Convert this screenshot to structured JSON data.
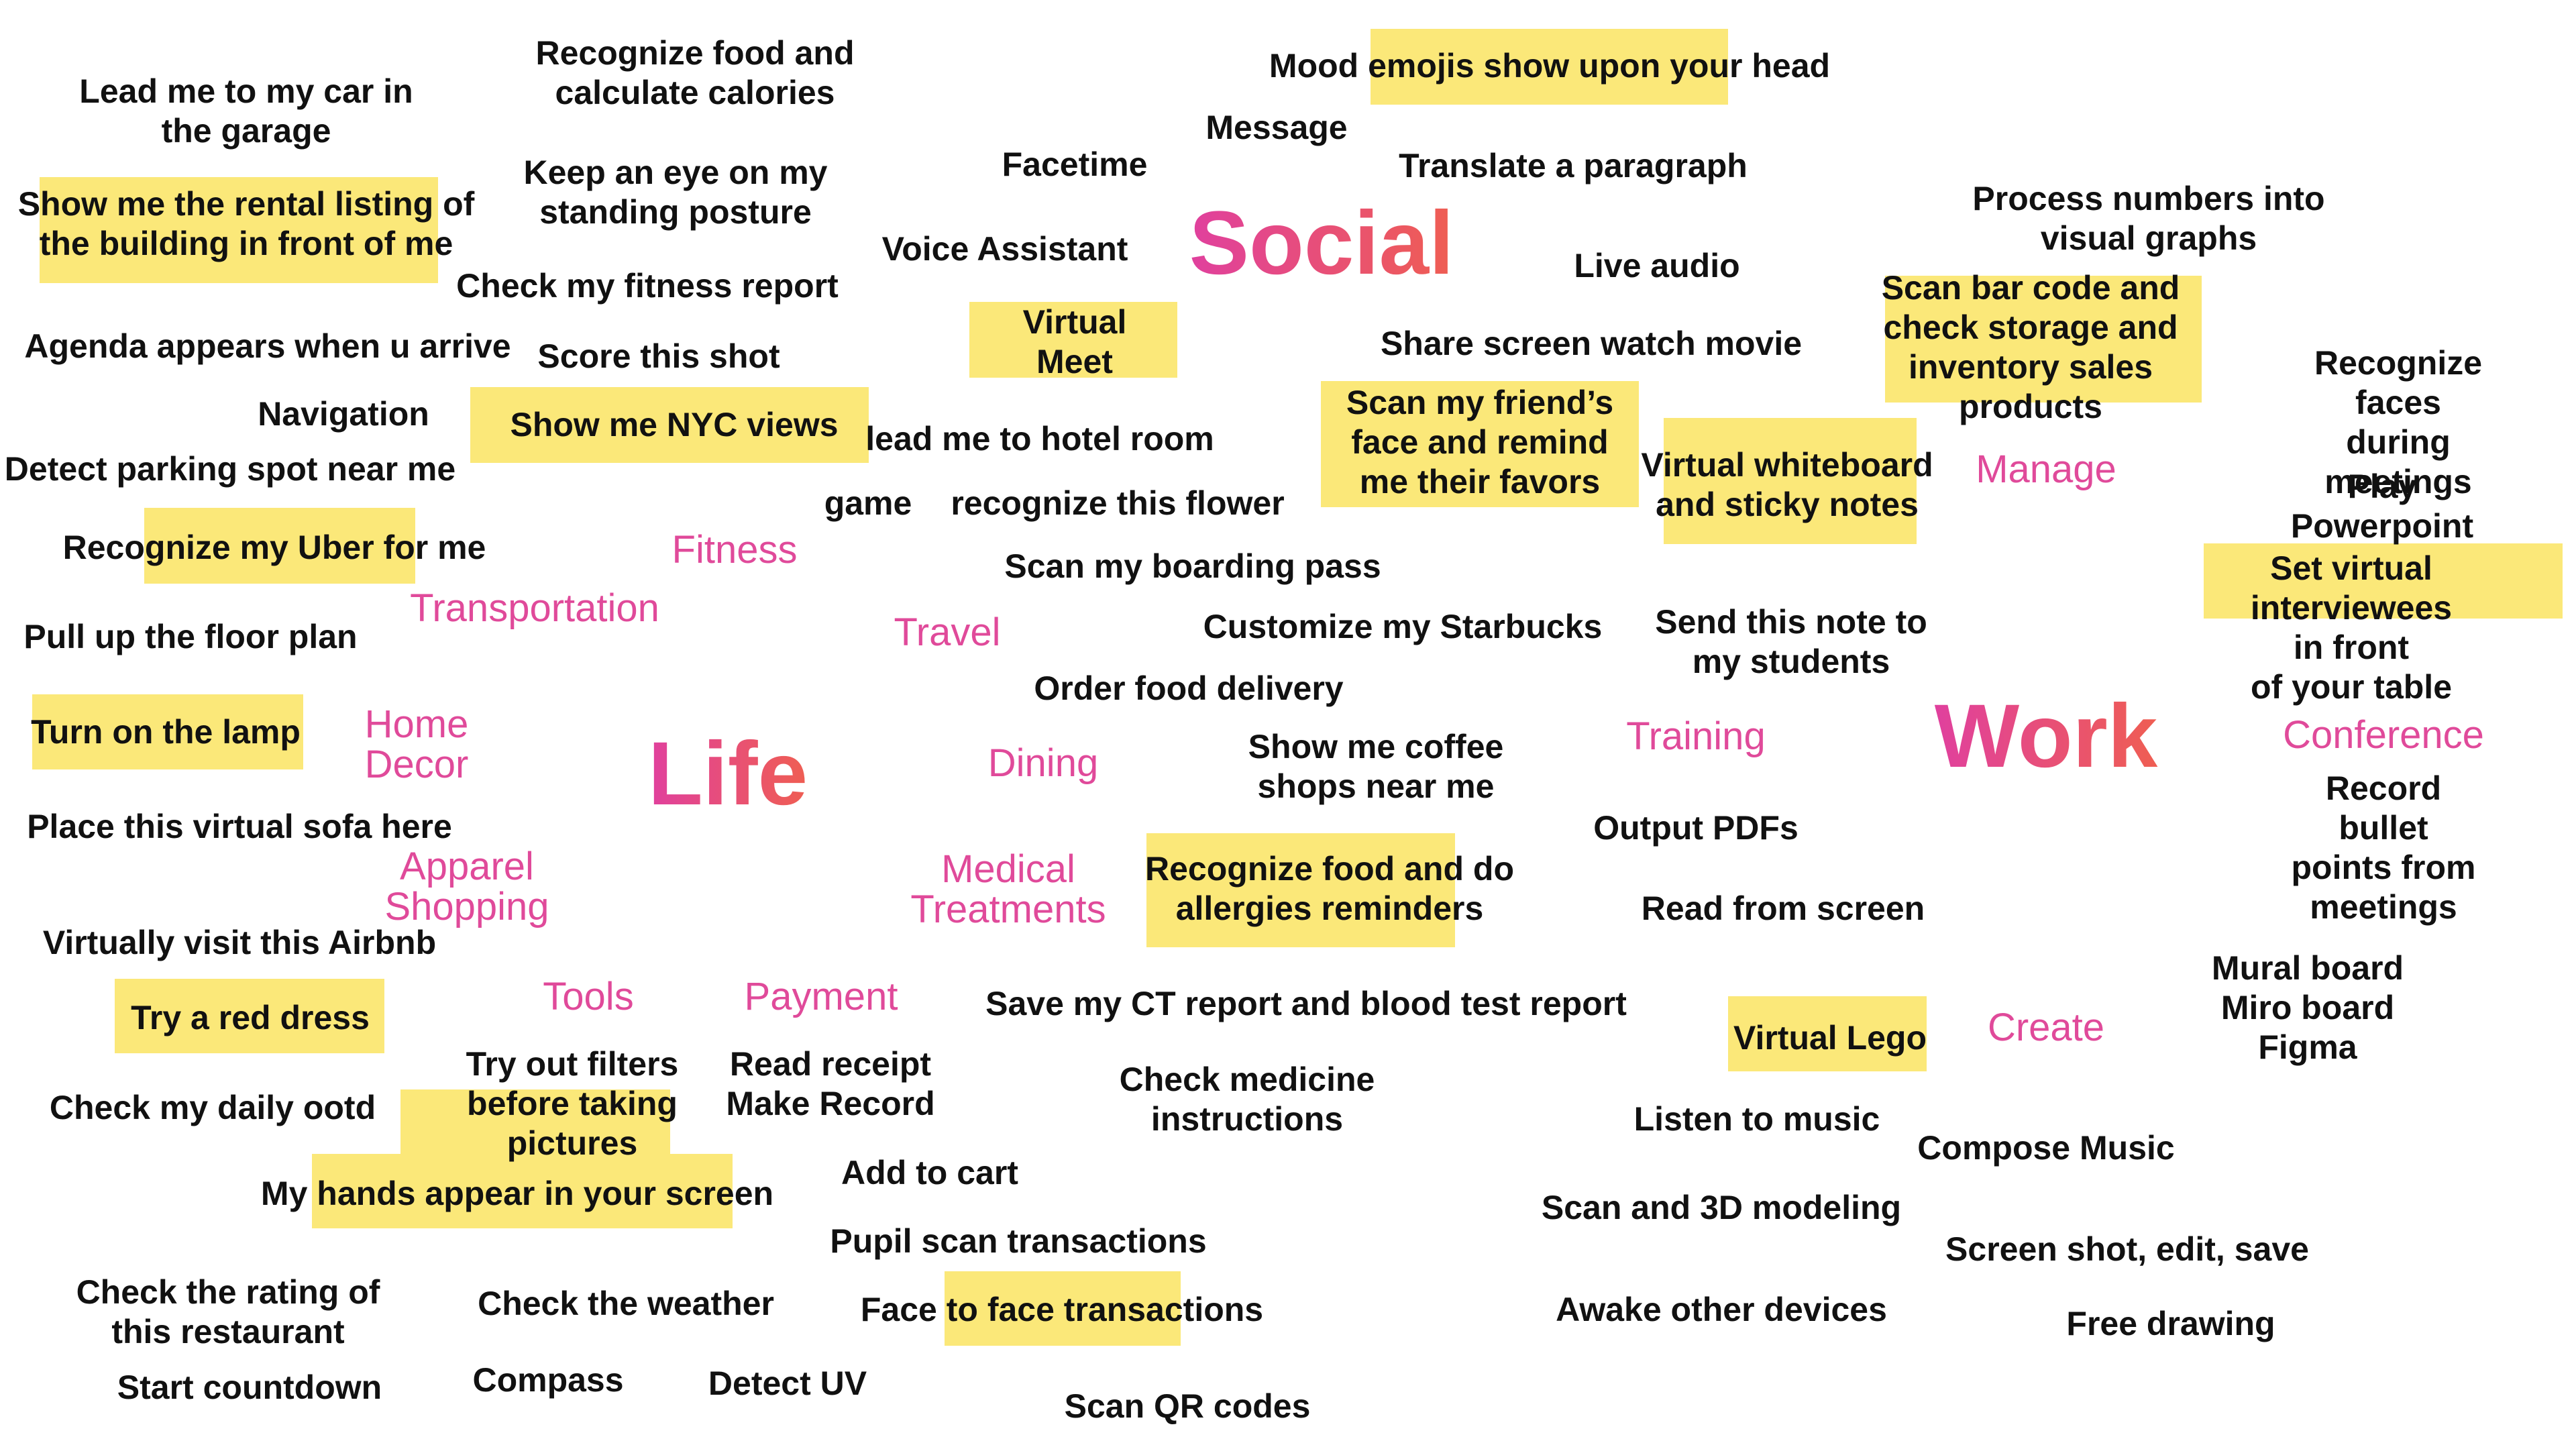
{
  "colors": {
    "highlight": "#fbe879",
    "category": "#e04a9a",
    "text": "#111111",
    "heading_gradient_start": "#e0409e",
    "heading_gradient_end": "#ef5e52"
  },
  "headings": {
    "social": "Social",
    "life": "Life",
    "work": "Work"
  },
  "categories": {
    "fitness": "Fitness",
    "transportation": "Transportation",
    "travel": "Travel",
    "home_decor": "Home\nDecor",
    "dining": "Dining",
    "apparel": "Apparel\nShopping",
    "medical": "Medical\nTreatments",
    "tools": "Tools",
    "payment": "Payment",
    "training": "Training",
    "manage": "Manage",
    "conference": "Conference",
    "create": "Create"
  },
  "notes": {
    "lead_car": "Lead me to my car in\nthe garage",
    "food_calories": "Recognize food and\ncalculate calories",
    "mood_emojis": "Mood emojis show upon your head",
    "message": "Message",
    "facetime": "Facetime",
    "translate": "Translate a paragraph",
    "keep_eye": "Keep an eye on my\nstanding posture",
    "rental": "Show me the rental listing of\nthe building in front of me",
    "process_numbers": "Process numbers into visual graphs",
    "voice_assistant": "Voice Assistant",
    "live_audio": "Live audio",
    "fitness_report": "Check my fitness report",
    "scan_barcode": "Scan bar code and\ncheck storage and\ninventory sales\nproducts",
    "virtual_meet": "Virtual\nMeet",
    "agenda": "Agenda appears when u arrive",
    "score_shot": "Score this shot",
    "share_screen": "Share screen watch movie",
    "recognize_faces": "Recognize faces\nduring meetings",
    "navigation": "Navigation",
    "nyc": "Show me NYC views",
    "scan_friend": "Scan my friend’s\nface and remind\nme their favors",
    "hotel": "lead me to hotel room",
    "parking": "Detect parking spot near me",
    "whiteboard": "Virtual whiteboard\nand sticky notes",
    "play_ppt": "Play Powerpoint",
    "game": "game",
    "flower": "recognize this flower",
    "uber": "Recognize my Uber for me",
    "boarding": "Scan my boarding pass",
    "interviewees": "Set virtual\ninterviewees in front\nof your table",
    "floor_plan": "Pull up the floor plan",
    "starbucks": "Customize my Starbucks",
    "send_note": "Send this note to\nmy students",
    "delivery": "Order food delivery",
    "lamp": "Turn on the lamp",
    "coffee": "Show me coffee\nshops near me",
    "record_bullets": "Record bullet\npoints from\nmeetings",
    "sofa": "Place this virtual sofa here",
    "pdfs": "Output PDFs",
    "allergies": "Recognize food and do\nallergies reminders",
    "read_screen": "Read from screen",
    "airbnb": "Virtually visit this Airbnb",
    "mural": "Mural board\nMiro board\nFigma",
    "red_dress": "Try a red dress",
    "ct_report": "Save my CT report and blood test report",
    "lego": "Virtual Lego",
    "filters": "Try out filters\nbefore taking\npictures",
    "receipt": "Read receipt\nMake Record",
    "medicine": "Check medicine\ninstructions",
    "ootd": "Check my daily ootd",
    "music": "Listen to music",
    "compose": "Compose Music",
    "cart": "Add to cart",
    "hands": "My hands appear in your screen",
    "modeling": "Scan and 3D modeling",
    "pupil": "Pupil scan transactions",
    "screenshot": "Screen shot, edit, save",
    "rating": "Check the rating of\nthis restaurant",
    "weather": "Check the weather",
    "face_trans": "Face to face transactions",
    "awake": "Awake other devices",
    "free_drawing": "Free drawing",
    "countdown": "Start countdown",
    "compass": "Compass",
    "uv": "Detect UV",
    "qr": "Scan QR codes"
  }
}
